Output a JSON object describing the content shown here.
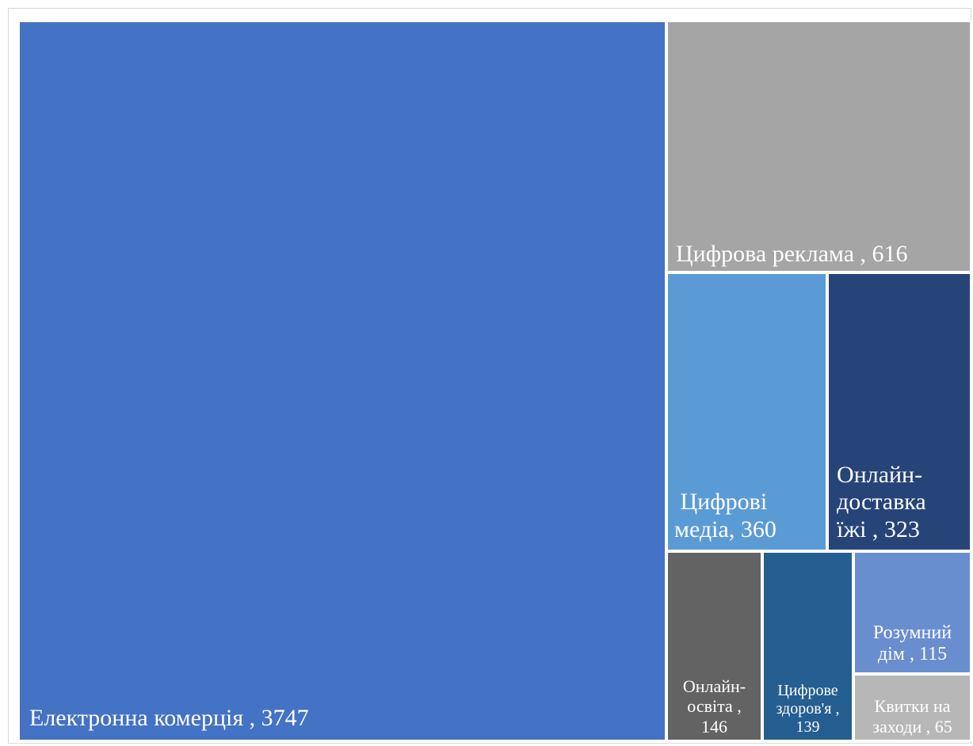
{
  "chart_data": {
    "type": "treemap",
    "title": "",
    "items": [
      {
        "id": "ecommerce",
        "label": "Електронна комерція , 3747",
        "name": "Електронна комерція",
        "value": 3747,
        "color": "#4472c4"
      },
      {
        "id": "ads",
        "label": "Цифрова реклама , 616",
        "name": "Цифрова реклама",
        "value": 616,
        "color": "#a5a5a5"
      },
      {
        "id": "media",
        "label": " Цифрові\nмедіа, 360",
        "name": "Цифрові медіа",
        "value": 360,
        "color": "#5b9bd5"
      },
      {
        "id": "food",
        "label": "Онлайн-\nдоставка\nїжі , 323",
        "name": "Онлайн-доставка їжі",
        "value": 323,
        "color": "#264478"
      },
      {
        "id": "edu",
        "label": "Онлайн-\nосвіта ,\n146",
        "name": "Онлайн-освіта",
        "value": 146,
        "color": "#636363"
      },
      {
        "id": "health",
        "label": "Цифрове\nздоров'я ,\n139",
        "name": "Цифрове здоров'я",
        "value": 139,
        "color": "#255e91"
      },
      {
        "id": "smarthome",
        "label": "Розумний\nдім , 115",
        "name": "Розумний дім",
        "value": 115,
        "color": "#698ed0"
      },
      {
        "id": "tickets",
        "label": "Квитки на\nзаходи , 65",
        "name": "Квитки на заходи",
        "value": 65,
        "color": "#b7b7b7"
      }
    ]
  }
}
